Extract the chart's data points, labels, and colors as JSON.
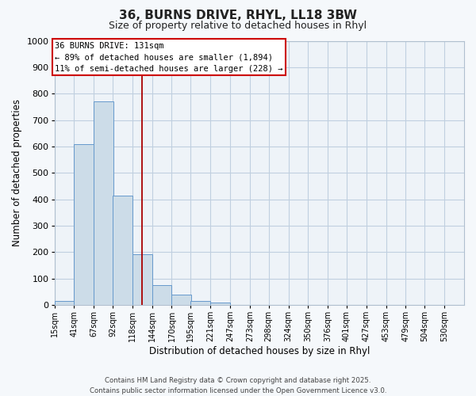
{
  "title": "36, BURNS DRIVE, RHYL, LL18 3BW",
  "subtitle": "Size of property relative to detached houses in Rhyl",
  "xlabel": "Distribution of detached houses by size in Rhyl",
  "ylabel": "Number of detached properties",
  "bar_labels": [
    "15sqm",
    "41sqm",
    "67sqm",
    "92sqm",
    "118sqm",
    "144sqm",
    "170sqm",
    "195sqm",
    "221sqm",
    "247sqm",
    "273sqm",
    "298sqm",
    "324sqm",
    "350sqm",
    "376sqm",
    "401sqm",
    "427sqm",
    "453sqm",
    "479sqm",
    "504sqm",
    "530sqm"
  ],
  "bar_values": [
    15,
    608,
    770,
    413,
    193,
    75,
    40,
    15,
    10,
    0,
    0,
    0,
    0,
    0,
    0,
    0,
    0,
    0,
    0,
    0,
    0
  ],
  "bar_color": "#ccdce8",
  "bar_edge_color": "#6699cc",
  "ylim": [
    0,
    1000
  ],
  "yticks": [
    0,
    100,
    200,
    300,
    400,
    500,
    600,
    700,
    800,
    900,
    1000
  ],
  "property_line_x": 131,
  "property_line_color": "#aa0000",
  "annotation_title": "36 BURNS DRIVE: 131sqm",
  "annotation_line1": "← 89% of detached houses are smaller (1,894)",
  "annotation_line2": "11% of semi-detached houses are larger (228) →",
  "annotation_box_color": "#ffffff",
  "annotation_box_edge_color": "#cc0000",
  "plot_bg_color": "#eef3f8",
  "fig_bg_color": "#f5f8fb",
  "grid_color": "#c0cfe0",
  "spine_color": "#b0bfcf",
  "footer1": "Contains HM Land Registry data © Crown copyright and database right 2025.",
  "footer2": "Contains public sector information licensed under the Open Government Licence v3.0.",
  "bin_width": 26
}
